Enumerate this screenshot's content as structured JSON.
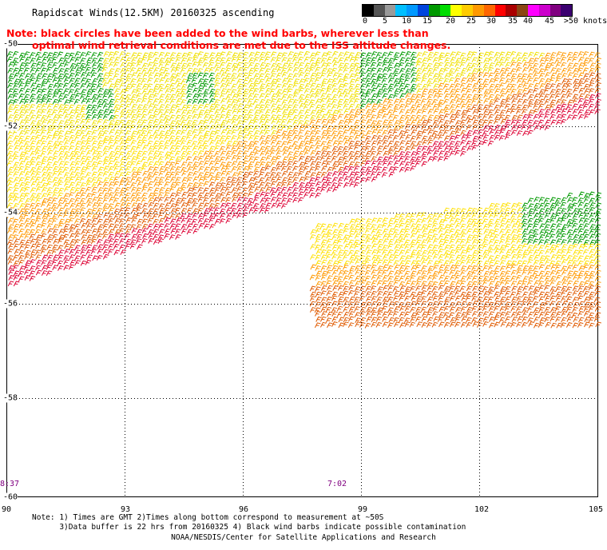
{
  "title": "Rapidscat Winds(12.5KM) 20160325 ascending",
  "note_line1": "Note: black circles have been added to the wind barbs, wherever less than",
  "note_line2": "optimal wind retrieval conditions are met due to the ISS altitude changes.",
  "legend": {
    "colors": [
      "#000000",
      "#555555",
      "#9a9a9a",
      "#00bfff",
      "#0099ff",
      "#0044dd",
      "#009900",
      "#00dd00",
      "#ffff00",
      "#ffcc00",
      "#ff9900",
      "#ff6600",
      "#ff0000",
      "#aa0000",
      "#8b4513",
      "#ff00ff",
      "#cc00cc",
      "#800080",
      "#3b0070"
    ],
    "labels": [
      "0",
      "5",
      "10",
      "15",
      "20",
      "25",
      "30",
      "35",
      "40",
      "45",
      ">50 knots"
    ]
  },
  "axes": {
    "y_labels": [
      "-50",
      "-52",
      "-54",
      "-56",
      "-58",
      "-60"
    ],
    "x_labels": [
      "90",
      "93",
      "96",
      "99",
      "102",
      "105"
    ]
  },
  "times": [
    "8:37",
    "7:02"
  ],
  "footnote_line1": "Note: 1) Times are GMT 2)Times along bottom correspond to measurement at ~50S",
  "footnote_line2": "3)Data buffer is 22 hrs from 20160325 4) Black wind barbs indicate possible contamination",
  "credit": "NOAA/NESDIS/Center for Satellite Applications and Research",
  "wind_colors": {
    "green": "#009900",
    "yellow": "#f0e000",
    "light_yellow": "#ffe000",
    "orange": "#ff9900",
    "dark_orange": "#e05a00",
    "red": "#dd0033"
  }
}
